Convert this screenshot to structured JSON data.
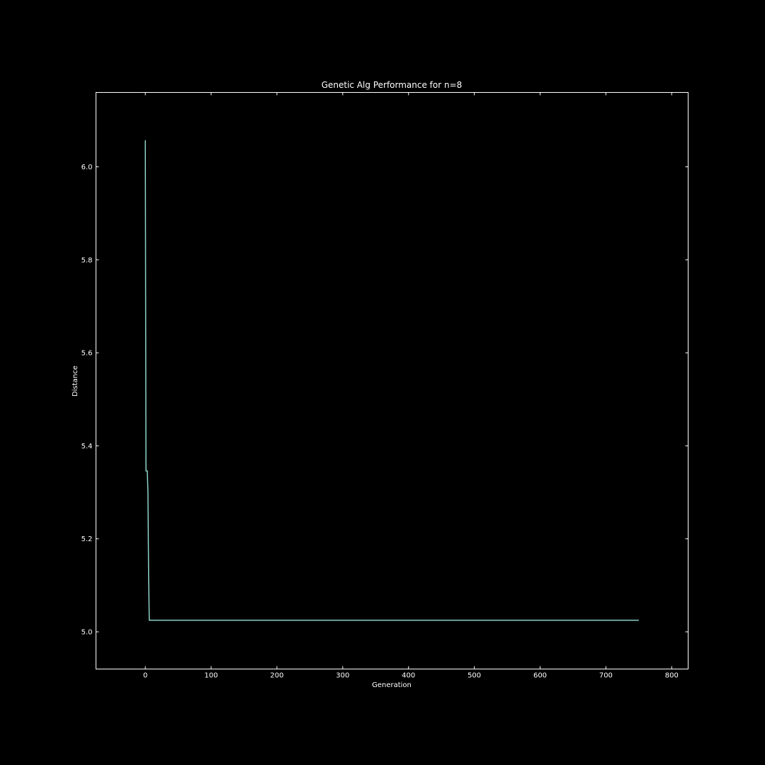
{
  "colors": {
    "background": "#000000",
    "foreground": "#ffffff",
    "series": "#8dd3c7"
  },
  "chart_data": {
    "type": "line",
    "title": "Genetic Alg Performance for n=8",
    "xlabel": "Generation",
    "ylabel": "Distance",
    "xlim": [
      -75,
      825
    ],
    "ylim": [
      4.92,
      6.16
    ],
    "xticks": [
      0,
      100,
      200,
      300,
      400,
      500,
      600,
      700,
      800
    ],
    "xtick_labels": [
      "0",
      "100",
      "200",
      "300",
      "400",
      "500",
      "600",
      "700",
      "800"
    ],
    "yticks": [
      5.0,
      5.2,
      5.4,
      5.6,
      5.8,
      6.0
    ],
    "ytick_labels": [
      "5.0",
      "5.2",
      "5.4",
      "5.6",
      "5.8",
      "6.0"
    ],
    "grid": false,
    "series": [
      {
        "x": [
          0,
          1,
          2,
          3,
          4,
          5,
          6,
          7,
          750
        ],
        "values": [
          6.057,
          5.346,
          5.346,
          5.346,
          5.3,
          5.12,
          5.025,
          5.025,
          5.025
        ]
      }
    ]
  }
}
